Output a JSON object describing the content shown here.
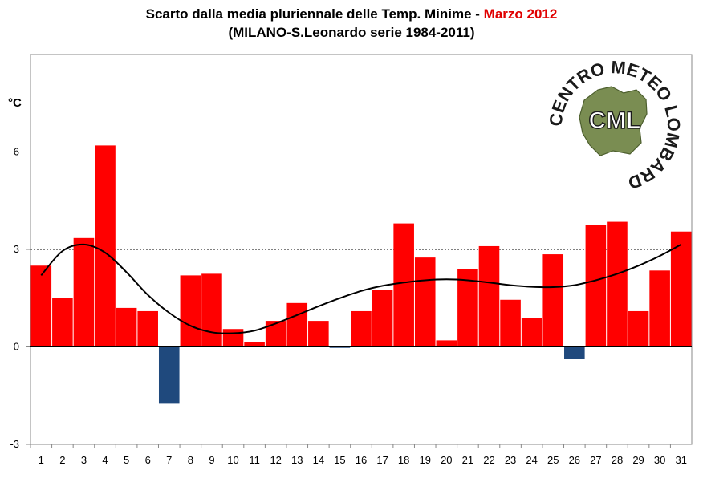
{
  "header": {
    "title_main": "Scarto dalla media pluriennale delle Temp. Minime -",
    "title_accent": "Marzo 2012",
    "subtitle": "(MILANO-S.Leonardo serie 1984-2011)"
  },
  "logo": {
    "abbr": "CML",
    "ring_text": "CENTRO METEO LOMBARDO",
    "icon": "lombardy-map-icon"
  },
  "colors": {
    "positive": "#ff0000",
    "negative": "#1f497d",
    "trend": "#000000",
    "accent": "#e00000"
  },
  "chart_data": {
    "type": "bar",
    "title": "Scarto dalla media pluriennale delle Temp. Minime - Marzo 2012",
    "subtitle": "(MILANO-S.Leonardo serie 1984-2011)",
    "ylabel": "°C",
    "xlabel": "",
    "ylim": [
      -3,
      9
    ],
    "yticks": [
      -3,
      0,
      3,
      6
    ],
    "grid": "dotted horizontal lines at 3 and 6",
    "categories": [
      "1",
      "2",
      "3",
      "4",
      "5",
      "6",
      "7",
      "8",
      "9",
      "10",
      "11",
      "12",
      "13",
      "14",
      "15",
      "16",
      "17",
      "18",
      "19",
      "20",
      "21",
      "22",
      "23",
      "24",
      "25",
      "26",
      "27",
      "28",
      "29",
      "30",
      "31"
    ],
    "values": [
      2.5,
      1.5,
      3.35,
      6.2,
      1.2,
      1.1,
      -1.75,
      2.2,
      2.25,
      0.55,
      0.15,
      0.8,
      1.35,
      0.8,
      -0.03,
      1.1,
      1.75,
      3.8,
      2.75,
      0.2,
      2.4,
      3.1,
      1.45,
      0.9,
      2.85,
      -0.38,
      3.75,
      3.85,
      1.1,
      2.35,
      3.55
    ],
    "trend": {
      "type": "polynomial",
      "x": [
        1,
        2,
        3,
        4,
        5,
        6,
        7,
        8,
        9,
        10,
        11,
        12,
        13,
        14,
        15,
        16,
        17,
        18,
        19,
        20,
        21,
        22,
        23,
        24,
        25,
        26,
        27,
        28,
        29,
        30,
        31
      ],
      "y": [
        2.2,
        2.95,
        3.15,
        2.9,
        2.3,
        1.6,
        1.05,
        0.65,
        0.45,
        0.42,
        0.5,
        0.72,
        0.98,
        1.25,
        1.5,
        1.72,
        1.88,
        1.98,
        2.05,
        2.08,
        2.05,
        1.98,
        1.9,
        1.85,
        1.84,
        1.9,
        2.05,
        2.25,
        2.5,
        2.8,
        3.15
      ]
    }
  }
}
